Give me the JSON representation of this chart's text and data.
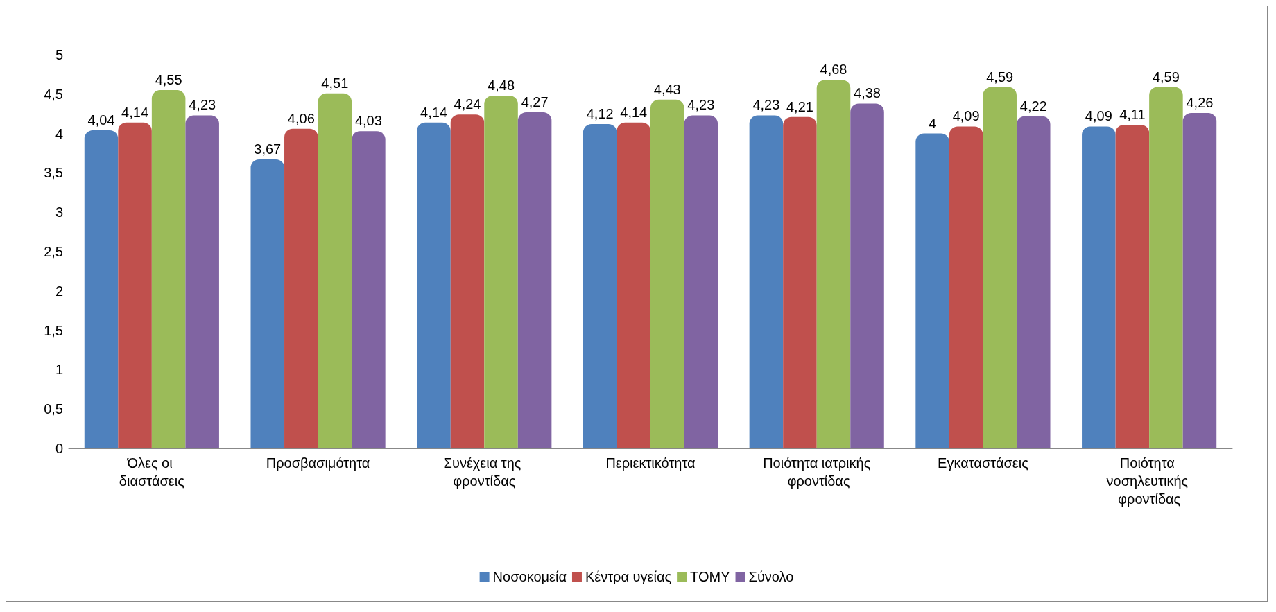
{
  "chart_data": {
    "type": "bar",
    "categories": [
      "Όλες οι διαστάσεις",
      "Προσβασιμότητα",
      "Συνέχεια της φροντίδας",
      "Περιεκτικότητα",
      "Ποιότητα ιατρικής φροντίδας",
      "Εγκαταστάσεις",
      "Ποιότητα νοσηλευτικής φροντίδας"
    ],
    "series": [
      {
        "name": "Νοσοκομεία",
        "color": "#4f81bd",
        "values": [
          4.04,
          3.67,
          4.14,
          4.12,
          4.23,
          4,
          4.09
        ],
        "value_labels": [
          "4,04",
          "3,67",
          "4,14",
          "4,12",
          "4,23",
          "4",
          "4,09"
        ]
      },
      {
        "name": "Κέντρα υγείας",
        "color": "#c0504d",
        "values": [
          4.14,
          4.06,
          4.24,
          4.14,
          4.21,
          4.09,
          4.11
        ],
        "value_labels": [
          "4,14",
          "4,06",
          "4,24",
          "4,14",
          "4,21",
          "4,09",
          "4,11"
        ]
      },
      {
        "name": "ΤΟΜΥ",
        "color": "#9bbb59",
        "values": [
          4.55,
          4.51,
          4.48,
          4.43,
          4.68,
          4.59,
          4.59
        ],
        "value_labels": [
          "4,55",
          "4,51",
          "4,48",
          "4,43",
          "4,68",
          "4,59",
          "4,59"
        ]
      },
      {
        "name": "Σύνολο",
        "color": "#8064a2",
        "values": [
          4.23,
          4.03,
          4.27,
          4.23,
          4.38,
          4.22,
          4.26
        ],
        "value_labels": [
          "4,23",
          "4,03",
          "4,27",
          "4,23",
          "4,38",
          "4,22",
          "4,26"
        ]
      }
    ],
    "ylim": [
      0,
      5
    ],
    "yticks": [
      0,
      {
        "value": 0.5,
        "label": "0,5"
      },
      1,
      {
        "value": 1.5,
        "label": "1,5"
      },
      2,
      {
        "value": 2.5,
        "label": "2,5"
      },
      3,
      {
        "value": 3.5,
        "label": "3,5"
      },
      4,
      {
        "value": 4.5,
        "label": "4,5"
      },
      5
    ],
    "grid": false,
    "legend": "bottom"
  }
}
